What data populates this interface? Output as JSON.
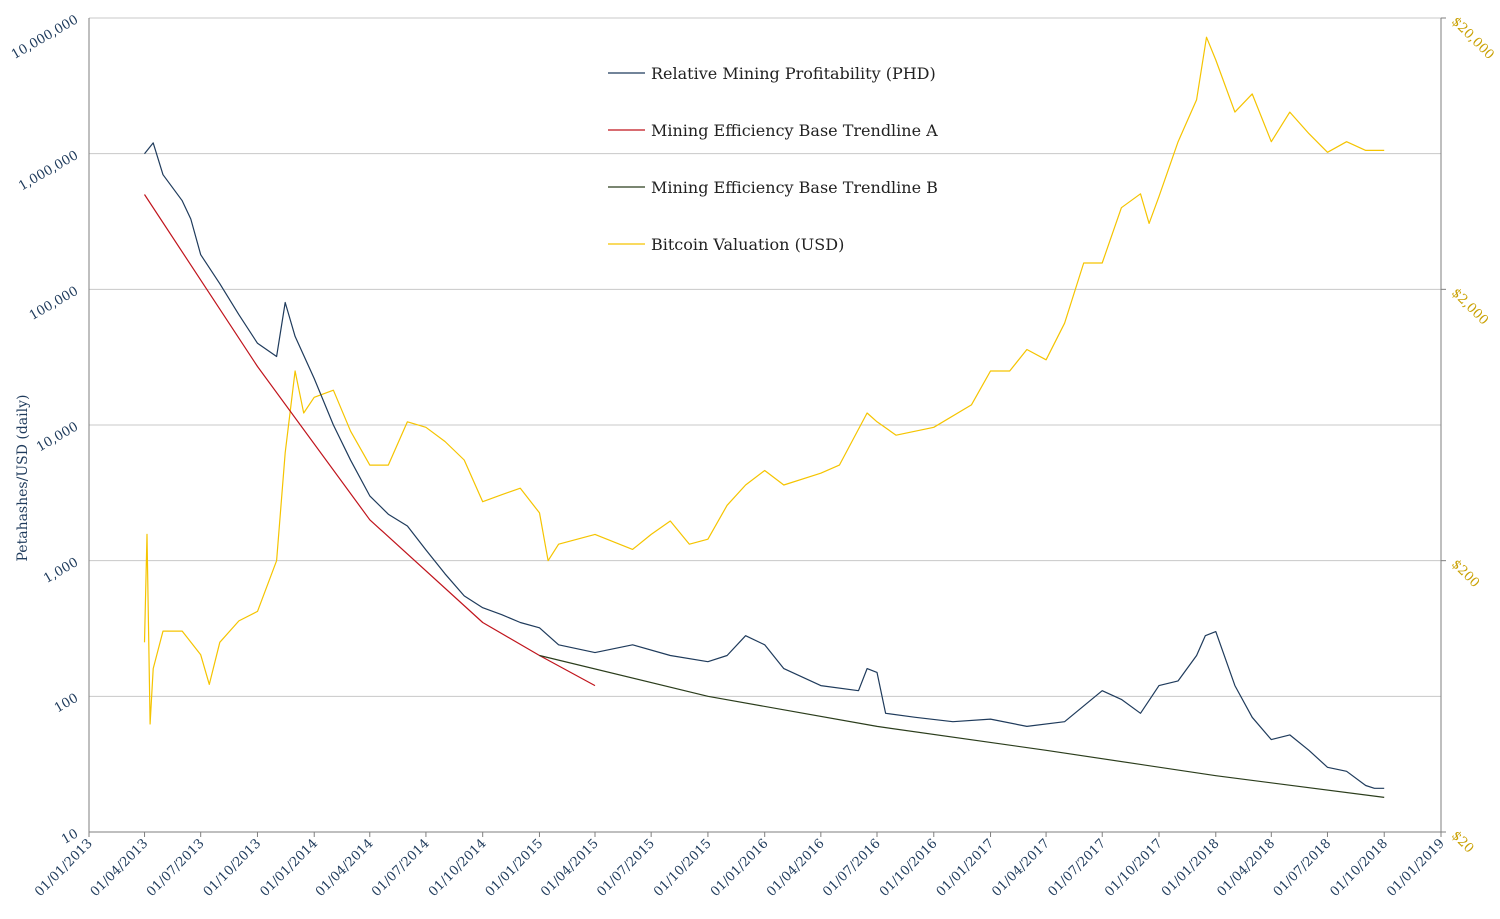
{
  "chart_data": {
    "type": "line",
    "title": "",
    "xlabel": "",
    "ylabel": "Petahashes/USD (daily)",
    "y_scale": "log",
    "ylim": [
      10,
      10000000
    ],
    "y_ticks": [
      "10",
      "100",
      "1,000",
      "10,000",
      "100,000",
      "1,000,000",
      "10,000,000"
    ],
    "y2_scale": "log",
    "y2lim": [
      20,
      20000
    ],
    "y2_ticks": [
      "$20",
      "$200",
      "$2,000",
      "$20,000"
    ],
    "x_ticks": [
      "01/01/2013",
      "01/04/2013",
      "01/07/2013",
      "01/10/2013",
      "01/01/2014",
      "01/04/2014",
      "01/07/2014",
      "01/10/2014",
      "01/01/2015",
      "01/04/2015",
      "01/07/2015",
      "01/10/2015",
      "01/01/2016",
      "01/04/2016",
      "01/07/2016",
      "01/10/2016",
      "01/01/2017",
      "01/04/2017",
      "01/07/2017",
      "01/10/2017",
      "01/01/2018",
      "01/04/2018",
      "01/07/2018",
      "01/10/2018",
      "01/01/2019"
    ],
    "grid": "horizontal",
    "legend_position": "top-center",
    "series": [
      {
        "name": "Relative Mining Profitability (PHD)",
        "axis": "left",
        "color": "#1f3b5c",
        "x": [
          "01/04/2013",
          "15/04/2013",
          "01/05/2013",
          "01/06/2013",
          "15/06/2013",
          "01/07/2013",
          "01/08/2013",
          "01/09/2013",
          "01/10/2013",
          "01/11/2013",
          "15/11/2013",
          "01/12/2013",
          "01/01/2014",
          "01/02/2014",
          "01/03/2014",
          "01/04/2014",
          "01/05/2014",
          "01/06/2014",
          "01/07/2014",
          "01/08/2014",
          "01/09/2014",
          "01/10/2014",
          "01/11/2014",
          "01/12/2014",
          "01/01/2015",
          "01/02/2015",
          "01/04/2015",
          "01/06/2015",
          "01/08/2015",
          "01/10/2015",
          "01/11/2015",
          "01/12/2015",
          "01/01/2016",
          "01/02/2016",
          "01/04/2016",
          "01/06/2016",
          "15/06/2016",
          "01/07/2016",
          "15/07/2016",
          "01/09/2016",
          "01/11/2016",
          "01/01/2017",
          "01/03/2017",
          "01/05/2017",
          "01/07/2017",
          "01/08/2017",
          "01/09/2017",
          "01/10/2017",
          "01/11/2017",
          "01/12/2017",
          "15/12/2017",
          "01/01/2018",
          "01/02/2018",
          "01/03/2018",
          "01/04/2018",
          "01/05/2018",
          "01/06/2018",
          "01/07/2018",
          "01/08/2018",
          "01/09/2018",
          "15/09/2018",
          "01/10/2018"
        ],
        "y": [
          1000000,
          1200000,
          700000,
          450000,
          330000,
          180000,
          110000,
          65000,
          40000,
          32000,
          80000,
          45000,
          22000,
          10000,
          5500,
          3000,
          2200,
          1800,
          1200,
          800,
          550,
          450,
          400,
          350,
          320,
          240,
          210,
          240,
          200,
          180,
          200,
          280,
          240,
          160,
          120,
          110,
          160,
          150,
          75,
          70,
          65,
          68,
          60,
          65,
          110,
          95,
          75,
          120,
          130,
          200,
          280,
          300,
          120,
          70,
          48,
          52,
          40,
          30,
          28,
          22,
          21,
          21
        ]
      },
      {
        "name": "Mining Efficiency Base Trendline A",
        "axis": "left",
        "color": "#c0141c",
        "x": [
          "01/04/2013",
          "01/10/2013",
          "01/04/2014",
          "01/10/2014",
          "01/01/2015",
          "01/04/2015"
        ],
        "y": [
          500000,
          27000,
          2000,
          350,
          200,
          120
        ]
      },
      {
        "name": "Mining Efficiency Base Trendline B",
        "axis": "left",
        "color": "#2b3d1c",
        "x": [
          "01/01/2015",
          "01/10/2015",
          "01/07/2016",
          "01/04/2017",
          "01/01/2018",
          "01/10/2018"
        ],
        "y": [
          200,
          100,
          60,
          40,
          26,
          18
        ]
      },
      {
        "name": "Bitcoin Valuation (USD)",
        "axis": "right",
        "color": "#f5c400",
        "x": [
          "01/04/2013",
          "05/04/2013",
          "10/04/2013",
          "15/04/2013",
          "01/05/2013",
          "01/06/2013",
          "01/07/2013",
          "15/07/2013",
          "01/08/2013",
          "01/09/2013",
          "01/10/2013",
          "01/11/2013",
          "15/11/2013",
          "01/12/2013",
          "15/12/2013",
          "01/01/2014",
          "01/02/2014",
          "01/03/2014",
          "01/04/2014",
          "01/05/2014",
          "01/06/2014",
          "01/07/2014",
          "01/08/2014",
          "01/09/2014",
          "01/10/2014",
          "01/11/2014",
          "01/12/2014",
          "01/01/2015",
          "15/01/2015",
          "01/02/2015",
          "01/04/2015",
          "01/06/2015",
          "01/07/2015",
          "01/08/2015",
          "01/09/2015",
          "01/10/2015",
          "01/11/2015",
          "01/12/2015",
          "01/01/2016",
          "01/02/2016",
          "01/04/2016",
          "01/05/2016",
          "15/06/2016",
          "01/07/2016",
          "01/08/2016",
          "01/10/2016",
          "01/12/2016",
          "01/01/2017",
          "01/02/2017",
          "01/03/2017",
          "01/04/2017",
          "01/05/2017",
          "01/06/2017",
          "01/07/2017",
          "01/08/2017",
          "01/09/2017",
          "15/09/2017",
          "01/10/2017",
          "01/11/2017",
          "01/12/2017",
          "17/12/2017",
          "01/01/2018",
          "01/02/2018",
          "01/03/2018",
          "01/04/2018",
          "01/05/2018",
          "01/06/2018",
          "01/07/2018",
          "01/08/2018",
          "01/09/2018",
          "01/10/2018"
        ],
        "y": [
          100,
          250,
          50,
          80,
          110,
          110,
          90,
          70,
          100,
          120,
          130,
          200,
          500,
          1000,
          700,
          800,
          850,
          600,
          450,
          450,
          650,
          620,
          550,
          470,
          330,
          350,
          370,
          300,
          200,
          230,
          250,
          220,
          250,
          280,
          230,
          240,
          320,
          380,
          430,
          380,
          420,
          450,
          700,
          650,
          580,
          620,
          750,
          1000,
          1000,
          1200,
          1100,
          1500,
          2500,
          2500,
          4000,
          4500,
          3500,
          4400,
          7000,
          10000,
          17000,
          14000,
          9000,
          10500,
          7000,
          9000,
          7500,
          6400,
          7000,
          6500,
          6500
        ]
      }
    ]
  }
}
